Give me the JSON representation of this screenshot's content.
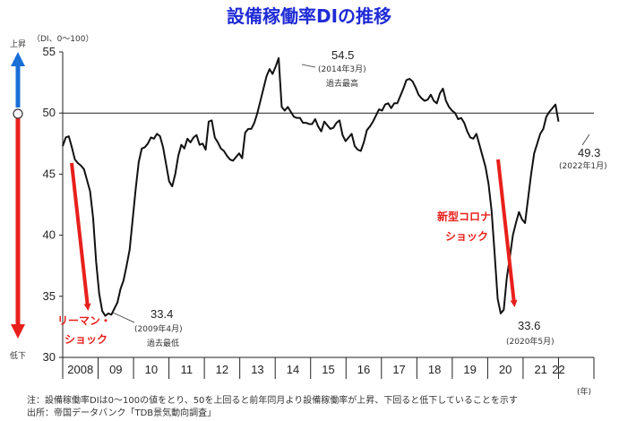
{
  "colors": {
    "title": "#1f2bd6",
    "line": "#111111",
    "arrow_red": "#e8201c",
    "arrow_blue": "#1a6fd6"
  },
  "chart_data": {
    "type": "line",
    "title": "設備稼働率DIの推移",
    "ylabel": "（DI、0〜100）",
    "ylim": [
      30,
      55
    ],
    "yticks": [
      30,
      35,
      40,
      45,
      50,
      55
    ],
    "reference_line": 50,
    "x_unit": "(年)",
    "xtick_labels": [
      "2008",
      "09",
      "10",
      "11",
      "12",
      "13",
      "14",
      "15",
      "16",
      "17",
      "18",
      "19",
      "20",
      "21",
      "22"
    ],
    "x_start": "2008-01",
    "x_end": "2022-01",
    "grid": false,
    "series": [
      {
        "values": [
          47.3,
          48.0,
          48.1,
          47.2,
          46.2,
          45.9,
          45.7,
          45.4,
          44.5,
          43.6,
          41.4,
          37.8,
          35.2,
          33.8,
          33.4,
          33.6,
          33.5,
          34.0,
          34.5,
          35.6,
          36.3,
          37.5,
          38.8,
          41.3,
          43.8,
          46.0,
          47.1,
          47.2,
          47.5,
          48.0,
          47.9,
          48.3,
          48.1,
          47.2,
          45.8,
          44.4,
          44.0,
          45.0,
          46.5,
          47.4,
          47.1,
          47.9,
          47.6,
          48.0,
          48.2,
          47.4,
          47.5,
          47.0,
          49.3,
          49.4,
          48.0,
          47.6,
          47.1,
          46.9,
          46.5,
          46.2,
          46.1,
          46.4,
          46.7,
          46.3,
          48.4,
          48.7,
          48.7,
          49.2,
          50.0,
          51.0,
          52.0,
          53.0,
          53.6,
          53.2,
          53.8,
          54.5,
          50.5,
          50.2,
          50.5,
          50.1,
          49.7,
          49.6,
          49.6,
          49.2,
          49.2,
          49.1,
          49.1,
          49.5,
          48.9,
          48.5,
          49.3,
          49.0,
          48.7,
          48.8,
          49.2,
          49.4,
          48.2,
          47.7,
          48.0,
          48.3,
          47.3,
          47.0,
          46.9,
          47.6,
          48.6,
          48.9,
          49.3,
          49.8,
          50.3,
          50.2,
          50.7,
          50.8,
          50.4,
          50.8,
          50.8,
          51.4,
          52.0,
          52.7,
          52.8,
          52.6,
          52.1,
          51.5,
          51.2,
          51.0,
          51.1,
          51.5,
          51.0,
          50.8,
          51.6,
          52.0,
          51.0,
          50.5,
          50.2,
          50.0,
          49.5,
          49.6,
          49.2,
          48.5,
          48.0,
          47.9,
          48.3,
          47.4,
          46.5,
          45.6,
          44.2,
          42.0,
          38.5,
          34.8,
          33.6,
          33.9,
          36.5,
          38.2,
          40.0,
          41.0,
          41.9,
          41.3,
          41.0,
          43.0,
          45.0,
          46.7,
          47.5,
          48.3,
          48.7,
          49.7,
          50.1,
          50.4,
          50.7,
          49.3
        ]
      }
    ],
    "annotations": {
      "peak": {
        "value": "54.5",
        "date": "(2014年3月)",
        "note": "過去最高"
      },
      "lehman_low": {
        "value": "33.4",
        "date": "(2009年4月)",
        "note": "過去最低"
      },
      "covid_low": {
        "value": "33.6",
        "date": "(2020年5月)"
      },
      "latest": {
        "value": "49.3",
        "date": "(2022年1月)"
      },
      "lehman_label": [
        "リーマン・",
        "ショック"
      ],
      "covid_label": [
        "新型コロナ",
        "ショック"
      ]
    },
    "side_scale": {
      "top": "上昇",
      "bottom": "低下"
    }
  },
  "footer": {
    "note": "注：設備稼働率DIは0〜100の値をとり、50を上回ると前年同月より設備稼働率が上昇、下回ると低下していることを示す",
    "source": "出所：帝国データバンク「TDB景気動向調査」"
  }
}
